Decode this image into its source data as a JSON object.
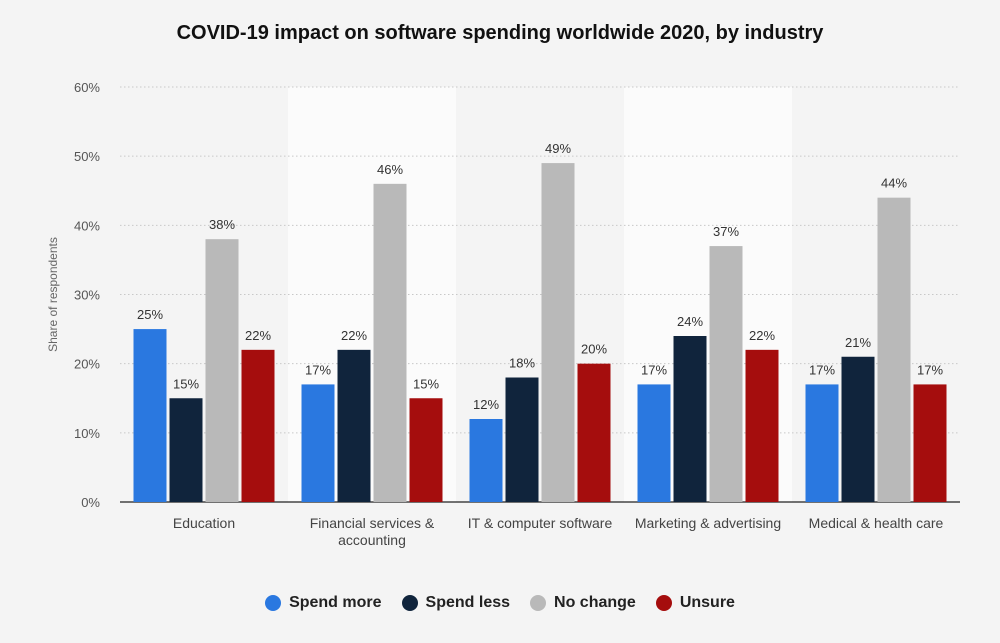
{
  "chart_data": {
    "type": "bar",
    "title": "COVID-19 impact on software spending worldwide 2020, by industry",
    "ylabel": "Share of respondents",
    "xlabel": "",
    "ylim": [
      0,
      60
    ],
    "yticks": [
      "0%",
      "10%",
      "20%",
      "30%",
      "40%",
      "50%",
      "60%"
    ],
    "grid": true,
    "legend_position": "bottom",
    "categories": [
      [
        "Education"
      ],
      [
        "Financial services &",
        "accounting"
      ],
      [
        "IT & computer software"
      ],
      [
        "Marketing & advertising"
      ],
      [
        "Medical & health care"
      ]
    ],
    "series": [
      {
        "name": "Spend more",
        "color": "#2a78e0",
        "values": [
          25,
          17,
          12,
          17,
          17
        ]
      },
      {
        "name": "Spend less",
        "color": "#10243c",
        "values": [
          15,
          22,
          18,
          24,
          21
        ]
      },
      {
        "name": "No change",
        "color": "#b9b9b9",
        "values": [
          38,
          46,
          49,
          37,
          44
        ]
      },
      {
        "name": "Unsure",
        "color": "#a50d0d",
        "values": [
          22,
          15,
          20,
          22,
          17
        ]
      }
    ],
    "value_suffix": "%"
  }
}
